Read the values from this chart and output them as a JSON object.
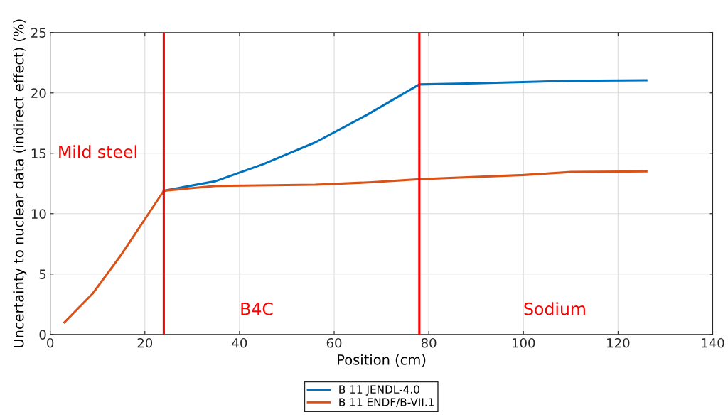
{
  "chart_data": {
    "type": "line",
    "xlabel": "Position (cm)",
    "ylabel": "Uncertainty to nuclear data (indirect effect) (%)",
    "xlim": [
      0,
      140
    ],
    "xticks": [
      0,
      20,
      40,
      60,
      80,
      100,
      120,
      140
    ],
    "ylim": [
      0,
      25
    ],
    "yticks": [
      0,
      5,
      10,
      15,
      20,
      25
    ],
    "grid": true,
    "legend": "bottom",
    "series": [
      {
        "name": "B 11 JENDL-4.0",
        "color": "#0072bd",
        "x": [
          24,
          35,
          45,
          56,
          67,
          78,
          90,
          110,
          126
        ],
        "values": [
          11.9,
          12.7,
          14.1,
          15.9,
          18.2,
          20.7,
          20.8,
          21.0,
          21.05
        ]
      },
      {
        "name": "B 11 ENDF/B-VII.1",
        "color": "#d95319",
        "x": [
          3,
          9,
          15,
          24,
          35,
          56,
          68,
          78,
          100,
          110,
          126
        ],
        "values": [
          1.0,
          3.4,
          6.6,
          11.9,
          12.3,
          12.4,
          12.6,
          12.85,
          13.2,
          13.45,
          13.5
        ]
      }
    ],
    "ref_lines": [
      {
        "axis": "x",
        "value": 24,
        "color": "#ff0000"
      },
      {
        "axis": "x",
        "value": 78,
        "color": "#ff0000"
      }
    ],
    "annotations": [
      "Mild steel",
      "B4C",
      "Sodium"
    ]
  }
}
